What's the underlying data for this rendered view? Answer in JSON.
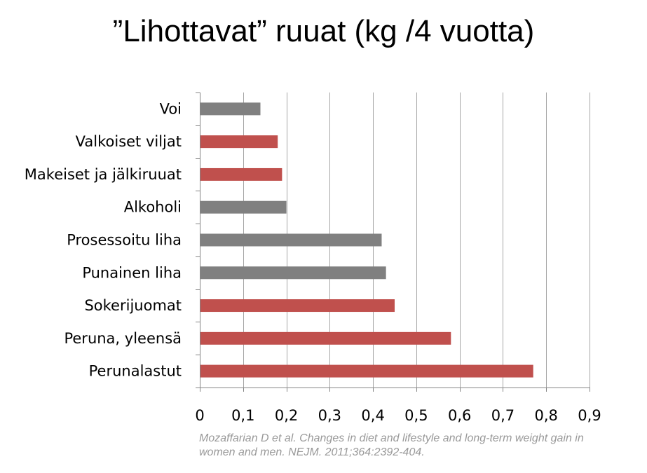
{
  "title": "”Lihottavat” ruuat (kg /4 vuotta)",
  "source": "Mozaffarian D et al. Changes in diet and lifestyle and long-term weight gain in women and men. NEJM. 2011;364:2392-404.",
  "colors": {
    "gray": "#808080",
    "red": "#c0504d",
    "grid": "#a6a6a6",
    "axis": "#868686"
  },
  "chart_data": {
    "type": "bar",
    "orientation": "horizontal",
    "categories": [
      "Voi",
      "Valkoiset viljat",
      "Makeiset ja jälkiruuat",
      "Alkoholi",
      "Prosessoitu liha",
      "Punainen liha",
      "Sokerijuomat",
      "Peruna, yleensä",
      "Perunalastut"
    ],
    "values": [
      0.14,
      0.18,
      0.19,
      0.2,
      0.42,
      0.43,
      0.45,
      0.58,
      0.77
    ],
    "bar_colors": [
      "gray",
      "red",
      "red",
      "gray",
      "gray",
      "gray",
      "red",
      "red",
      "red"
    ],
    "xlim": [
      0,
      0.9
    ],
    "ticks": [
      "0",
      "0,1",
      "0,2",
      "0,3",
      "0,4",
      "0,5",
      "0,6",
      "0,7",
      "0,8",
      "0,9"
    ],
    "grid": "vertical"
  }
}
